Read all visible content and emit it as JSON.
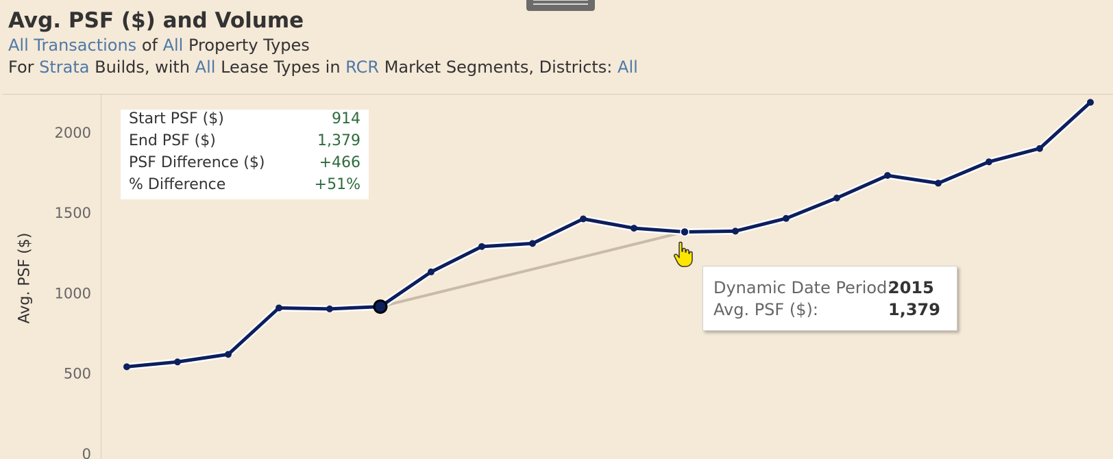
{
  "header": {
    "title": "Avg. PSF ($) and Volume",
    "line1": {
      "link1": "All Transactions",
      "t1": " of ",
      "link2": "All",
      "t2": " Property Types"
    },
    "line2": {
      "t1": "For ",
      "link1": "Strata",
      "t2": " Builds, with ",
      "link2": "All",
      "t3": " Lease Types in ",
      "link3": "RCR",
      "t4": " Market Segments, Districts: ",
      "link4": "All"
    }
  },
  "summary": {
    "rows": [
      {
        "label": "Start PSF ($)",
        "value": "914"
      },
      {
        "label": "End PSF ($)",
        "value": "1,379"
      },
      {
        "label": "PSF Difference ($)",
        "value": "+466"
      },
      {
        "label": "% Difference",
        "value": "+51%"
      }
    ]
  },
  "tooltip": {
    "period_label": "Dynamic Date Period:",
    "period_value": "2015",
    "psf_label": "Avg. PSF ($):",
    "psf_value": "1,379"
  },
  "colors": {
    "line": "#0d1f5c",
    "link": "#4e79a7",
    "positive": "#2e6b3c",
    "connector": "#c8bba8",
    "background": "#f5e9d8"
  },
  "chart_data": {
    "type": "line",
    "ylabel": "Avg. PSF ($)",
    "ylim": [
      0,
      2250
    ],
    "yticks": [
      0,
      500,
      1000,
      1500,
      2000
    ],
    "grid": false,
    "series": [
      {
        "values": [
          540,
          570,
          617,
          906,
          900,
          914,
          1130,
          1288,
          1307,
          1460,
          1402,
          1379,
          1384,
          1463,
          1590,
          1730,
          1682,
          1815,
          1898,
          2185
        ]
      }
    ],
    "highlight_start_index": 5,
    "highlight_end_index": 11,
    "hovered_index": 11
  }
}
